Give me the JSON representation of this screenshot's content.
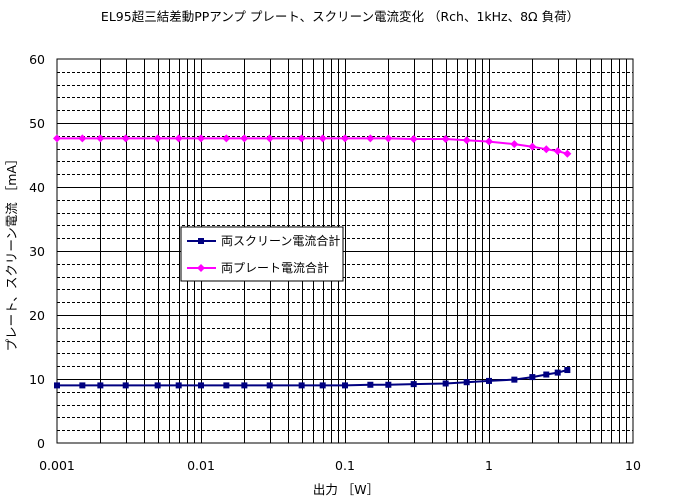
{
  "chart_data": {
    "type": "line",
    "title": "EL95超三結差動PPアンプ プレート、スクリーン電流変化 （Rch、1kHz、8Ω 負荷）",
    "xlabel": "出力 ［W］",
    "ylabel": "プレート、スクリーン電流 ［mA］",
    "x_scale": "log",
    "xlim": [
      0.001,
      10
    ],
    "ylim": [
      0,
      60
    ],
    "x_tick_labels": [
      "0.001",
      "0.01",
      "0.1",
      "1",
      "10"
    ],
    "y_tick_labels": [
      "0",
      "10",
      "20",
      "30",
      "40",
      "50",
      "60"
    ],
    "y_major_step": 10,
    "y_minor_step": 2,
    "grid": true,
    "legend_position": "center-left",
    "series": [
      {
        "name": "両スクリーン電流合計",
        "color": "#000080",
        "marker": "square",
        "x": [
          0.001,
          0.0015,
          0.002,
          0.003,
          0.005,
          0.007,
          0.01,
          0.015,
          0.02,
          0.03,
          0.05,
          0.07,
          0.1,
          0.15,
          0.2,
          0.3,
          0.5,
          0.7,
          1.0,
          1.5,
          2.0,
          2.5,
          3.0,
          3.5
        ],
        "y": [
          9.0,
          9.0,
          9.0,
          9.0,
          9.0,
          9.0,
          9.0,
          9.0,
          9.0,
          9.0,
          9.0,
          9.0,
          9.0,
          9.1,
          9.1,
          9.2,
          9.3,
          9.5,
          9.7,
          9.9,
          10.3,
          10.7,
          11.0,
          11.4
        ]
      },
      {
        "name": "両プレート電流合計",
        "color": "#ff00ff",
        "marker": "diamond",
        "x": [
          0.001,
          0.0015,
          0.002,
          0.003,
          0.005,
          0.007,
          0.01,
          0.015,
          0.02,
          0.03,
          0.05,
          0.07,
          0.1,
          0.15,
          0.2,
          0.3,
          0.5,
          0.7,
          1.0,
          1.5,
          2.0,
          2.5,
          3.0,
          3.5
        ],
        "y": [
          47.6,
          47.6,
          47.6,
          47.6,
          47.6,
          47.6,
          47.6,
          47.6,
          47.6,
          47.6,
          47.6,
          47.6,
          47.6,
          47.6,
          47.6,
          47.5,
          47.5,
          47.3,
          47.1,
          46.7,
          46.3,
          45.9,
          45.6,
          45.2
        ]
      }
    ]
  }
}
